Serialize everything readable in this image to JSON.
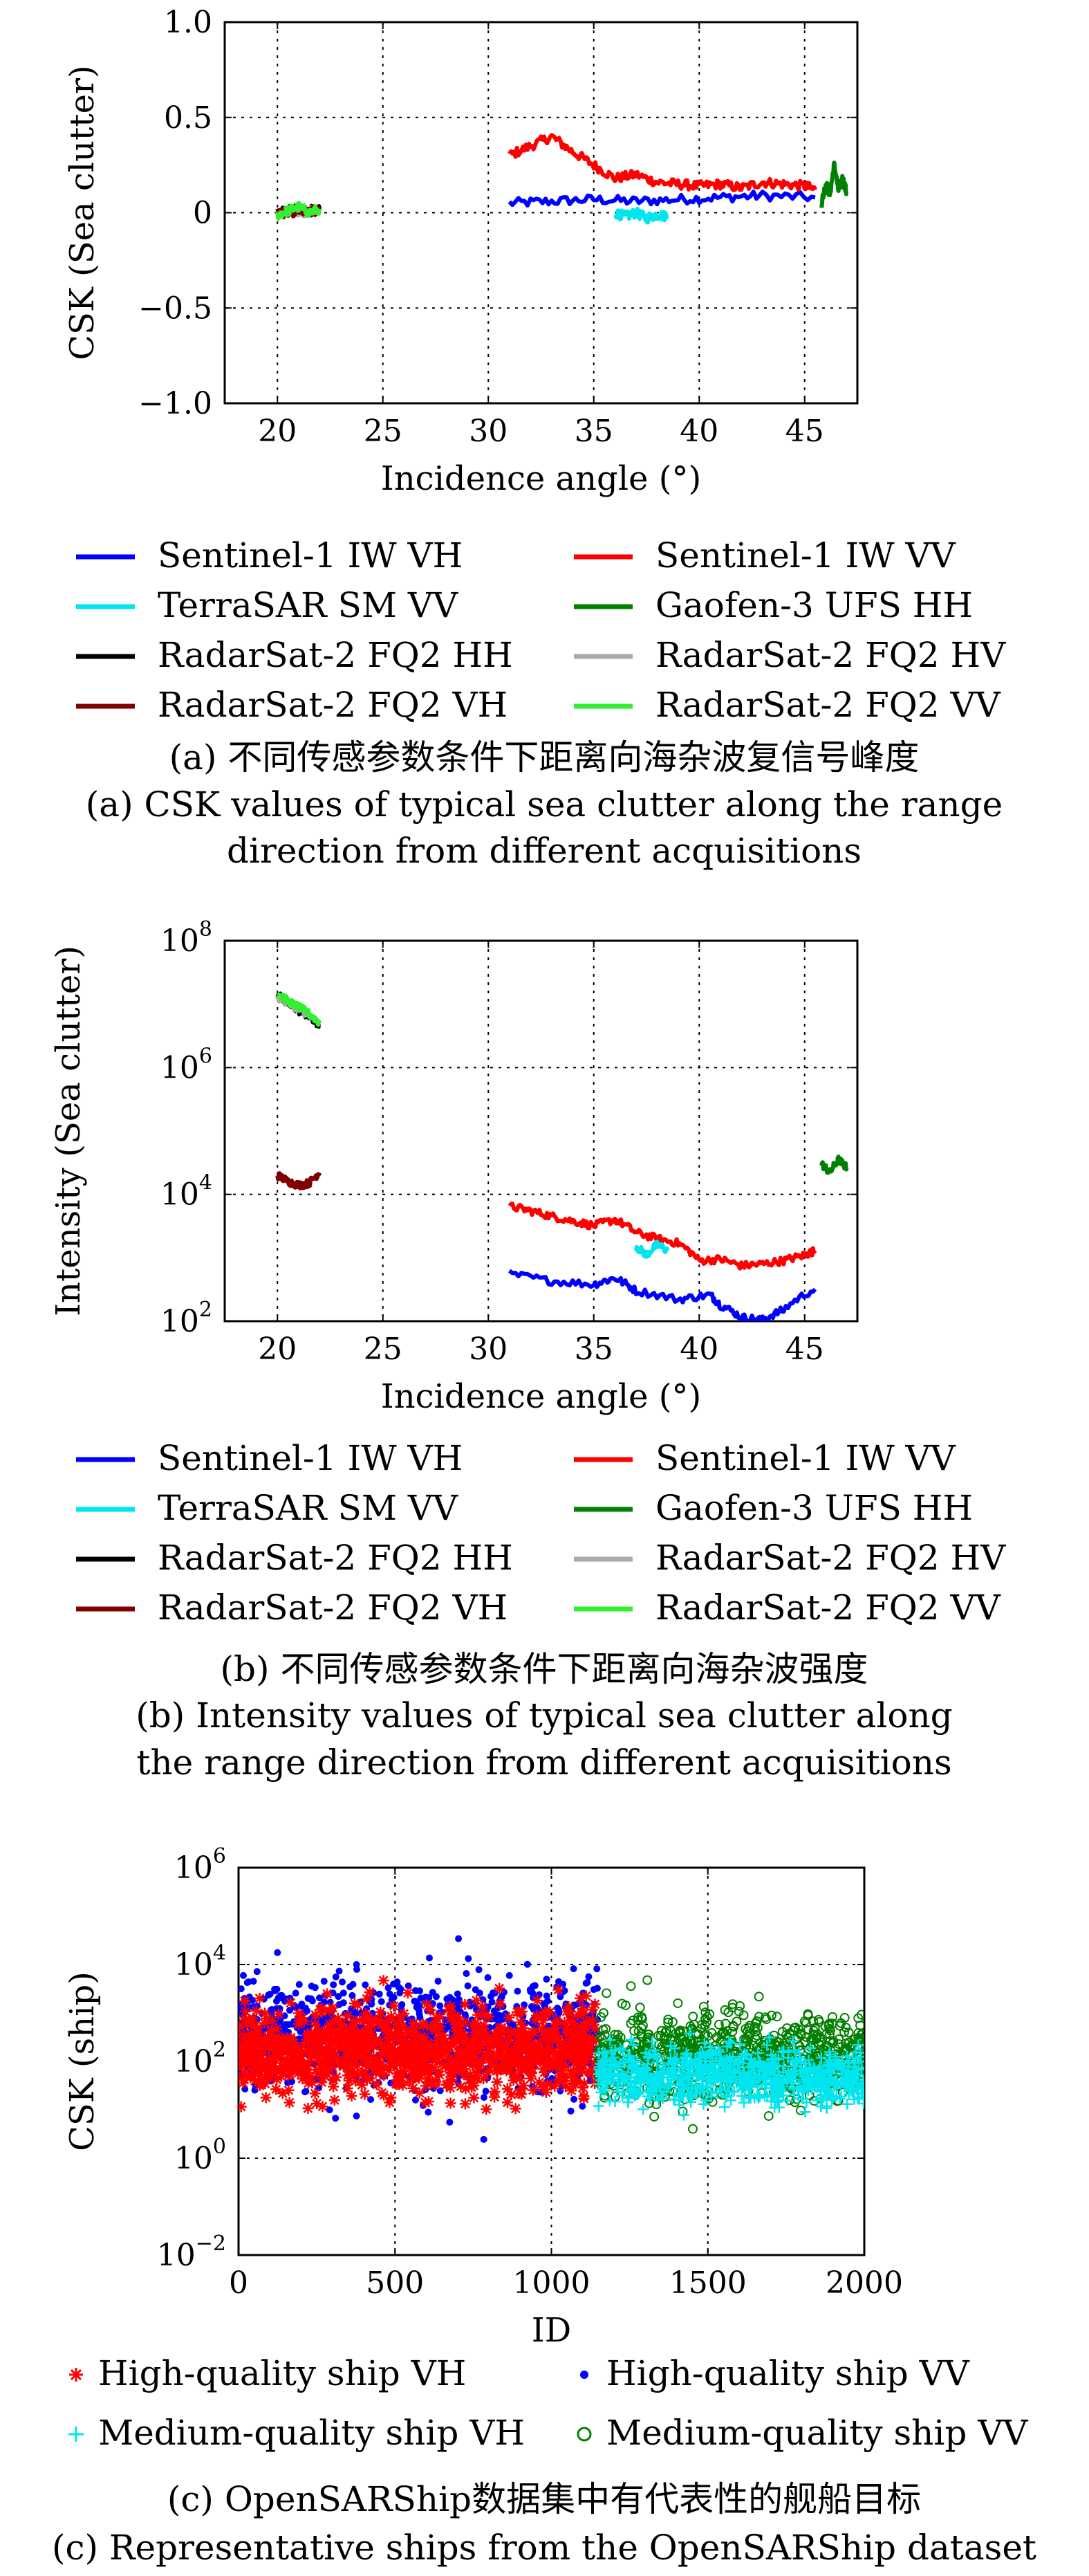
{
  "chart_data": [
    {
      "type": "line",
      "panel": "a",
      "xlabel": "Incidence angle (°)",
      "ylabel": "CSK (Sea clutter)",
      "xlim": [
        17.5,
        47.5
      ],
      "ylim": [
        -1.0,
        1.0
      ],
      "xticks": [
        20,
        25,
        30,
        35,
        40,
        45
      ],
      "yticks": [
        -1.0,
        -0.5,
        0,
        0.5,
        1.0
      ],
      "ytick_labels": [
        "−1.0",
        "−0.5",
        "0",
        "0.5",
        "1.0"
      ],
      "grid": true,
      "legend_position": "below",
      "series": [
        {
          "name": "Sentinel-1 IW VH",
          "color": "#0000ff",
          "x": [
            31,
            33,
            35,
            37,
            39,
            41,
            43,
            45.5
          ],
          "y": [
            0.05,
            0.06,
            0.07,
            0.06,
            0.07,
            0.08,
            0.09,
            0.08
          ]
        },
        {
          "name": "Sentinel-1 IW VV",
          "color": "#ff0000",
          "x": [
            31,
            32,
            33,
            34,
            35,
            36,
            37,
            38,
            39,
            40,
            41,
            42,
            43,
            44,
            45,
            45.5
          ],
          "y": [
            0.3,
            0.35,
            0.4,
            0.32,
            0.25,
            0.18,
            0.2,
            0.16,
            0.15,
            0.14,
            0.15,
            0.13,
            0.16,
            0.15,
            0.14,
            0.12
          ]
        },
        {
          "name": "TerraSAR SM VV",
          "color": "#00e5ee",
          "x": [
            36,
            36.5,
            37,
            37.5,
            38,
            38.5
          ],
          "y": [
            0.0,
            -0.02,
            0.0,
            -0.03,
            -0.01,
            -0.02
          ]
        },
        {
          "name": "Gaofen-3 UFS HH",
          "color": "#008000",
          "x": [
            45.8,
            46.0,
            46.2,
            46.4,
            46.6,
            46.8,
            47.0
          ],
          "y": [
            0.05,
            0.15,
            0.1,
            0.25,
            0.12,
            0.18,
            0.1
          ]
        },
        {
          "name": "RadarSat-2 FQ2 HH",
          "color": "#000000",
          "x": [
            20,
            20.5,
            21,
            21.5,
            22
          ],
          "y": [
            0.0,
            0.01,
            0.02,
            0.01,
            0.02
          ]
        },
        {
          "name": "RadarSat-2 FQ2 HV",
          "color": "#aaaaaa",
          "x": [
            20,
            20.5,
            21,
            21.5,
            22
          ],
          "y": [
            0.0,
            0.01,
            0.0,
            0.01,
            0.01
          ]
        },
        {
          "name": "RadarSat-2 FQ2 VH",
          "color": "#800000",
          "x": [
            20,
            20.5,
            21,
            21.5,
            22
          ],
          "y": [
            0.0,
            0.0,
            0.01,
            0.0,
            0.01
          ]
        },
        {
          "name": "RadarSat-2 FQ2 VV",
          "color": "#33ee33",
          "x": [
            20,
            20.5,
            21,
            21.5,
            22
          ],
          "y": [
            -0.01,
            0.01,
            0.03,
            0.0,
            0.02
          ]
        }
      ]
    },
    {
      "type": "line",
      "panel": "b",
      "xlabel": "Incidence angle (°)",
      "ylabel": "Intensity (Sea clutter)",
      "xlim": [
        17.5,
        47.5
      ],
      "ylim_log10": [
        2,
        8
      ],
      "yscale": "log",
      "xticks": [
        20,
        25,
        30,
        35,
        40,
        45
      ],
      "yticks_exp": [
        2,
        4,
        6,
        8
      ],
      "grid": true,
      "legend_position": "below",
      "series": [
        {
          "name": "Sentinel-1 IW VH",
          "color": "#0000ff",
          "x": [
            31,
            33,
            35,
            36,
            37,
            39,
            40.5,
            41,
            42,
            43,
            44,
            45.5
          ],
          "y": [
            550,
            430,
            380,
            480,
            300,
            220,
            260,
            180,
            115,
            105,
            150,
            320
          ]
        },
        {
          "name": "Sentinel-1 IW VV",
          "color": "#ff0000",
          "x": [
            31,
            32,
            33,
            34,
            35,
            36,
            37,
            38,
            39,
            40,
            41,
            42,
            43,
            44,
            45,
            45.5
          ],
          "y": [
            6500,
            5500,
            4500,
            3800,
            3200,
            4000,
            2500,
            2000,
            1700,
            900,
            950,
            750,
            800,
            900,
            1100,
            1300
          ]
        },
        {
          "name": "TerraSAR SM VV",
          "color": "#00e5ee",
          "x": [
            37,
            37.5,
            38,
            38.5
          ],
          "y": [
            1500,
            1100,
            1600,
            1300
          ]
        },
        {
          "name": "Gaofen-3 UFS HH",
          "color": "#008000",
          "x": [
            45.8,
            46.2,
            46.6,
            47.0
          ],
          "y": [
            30000,
            22000,
            35000,
            26000
          ]
        },
        {
          "name": "RadarSat-2 FQ2 HH",
          "color": "#000000",
          "x": [
            20,
            20.5,
            21,
            21.5,
            22
          ],
          "y": [
            14000000,
            11000000,
            8000000,
            6500000,
            4500000
          ]
        },
        {
          "name": "RadarSat-2 FQ2 HV",
          "color": "#aaaaaa",
          "x": [
            20,
            21,
            22
          ],
          "y": [
            13000000,
            8000000,
            5000000
          ]
        },
        {
          "name": "RadarSat-2 FQ2 VH",
          "color": "#800000",
          "x": [
            20,
            20.5,
            21,
            21.5,
            22
          ],
          "y": [
            20000,
            16000,
            14000,
            15000,
            22000
          ]
        },
        {
          "name": "RadarSat-2 FQ2 VV",
          "color": "#33ee33",
          "x": [
            20,
            20.5,
            21,
            21.5,
            22
          ],
          "y": [
            15000000,
            11000000,
            9000000,
            7000000,
            5000000
          ]
        }
      ]
    },
    {
      "type": "scatter",
      "panel": "c",
      "xlabel": "ID",
      "ylabel": "CSK (ship)",
      "xlim": [
        0,
        2000
      ],
      "ylim_log10": [
        -2,
        6
      ],
      "yscale": "log",
      "xticks": [
        0,
        500,
        1000,
        1500,
        2000
      ],
      "yticks_exp": [
        -2,
        0,
        2,
        4,
        6
      ],
      "grid": true,
      "legend_position": "below",
      "series": [
        {
          "name": "High-quality ship VH",
          "color": "#ff0000",
          "marker": "star",
          "id_range": [
            0,
            1150
          ],
          "log10_center": 2.2,
          "log10_spread": 0.8
        },
        {
          "name": "High-quality ship VV",
          "color": "#0000ff",
          "marker": "dot",
          "id_range": [
            0,
            1150
          ],
          "log10_center": 2.6,
          "log10_spread": 1.0
        },
        {
          "name": "Medium-quality ship VH",
          "color": "#00e5ee",
          "marker": "plus",
          "id_range": [
            1150,
            2000
          ],
          "log10_center": 1.7,
          "log10_spread": 0.5
        },
        {
          "name": "Medium-quality ship VV",
          "color": "#008000",
          "marker": "circle",
          "id_range": [
            1150,
            2000
          ],
          "log10_center": 2.1,
          "log10_spread": 0.8
        }
      ]
    }
  ],
  "captions": {
    "a_zh": "(a) 不同传感参数条件下距离向海杂波复信号峰度",
    "a_en_1": "(a) CSK values of typical sea clutter along the range",
    "a_en_2": "direction from different acquisitions",
    "b_zh": "(b) 不同传感参数条件下距离向海杂波强度",
    "b_en_1": "(b) Intensity values of typical sea clutter along",
    "b_en_2": "the range direction from different acquisitions",
    "c_zh": "(c) OpenSARShip数据集中有代表性的舰船目标",
    "c_en": "(c) Representative ships from the OpenSARShip dataset"
  }
}
